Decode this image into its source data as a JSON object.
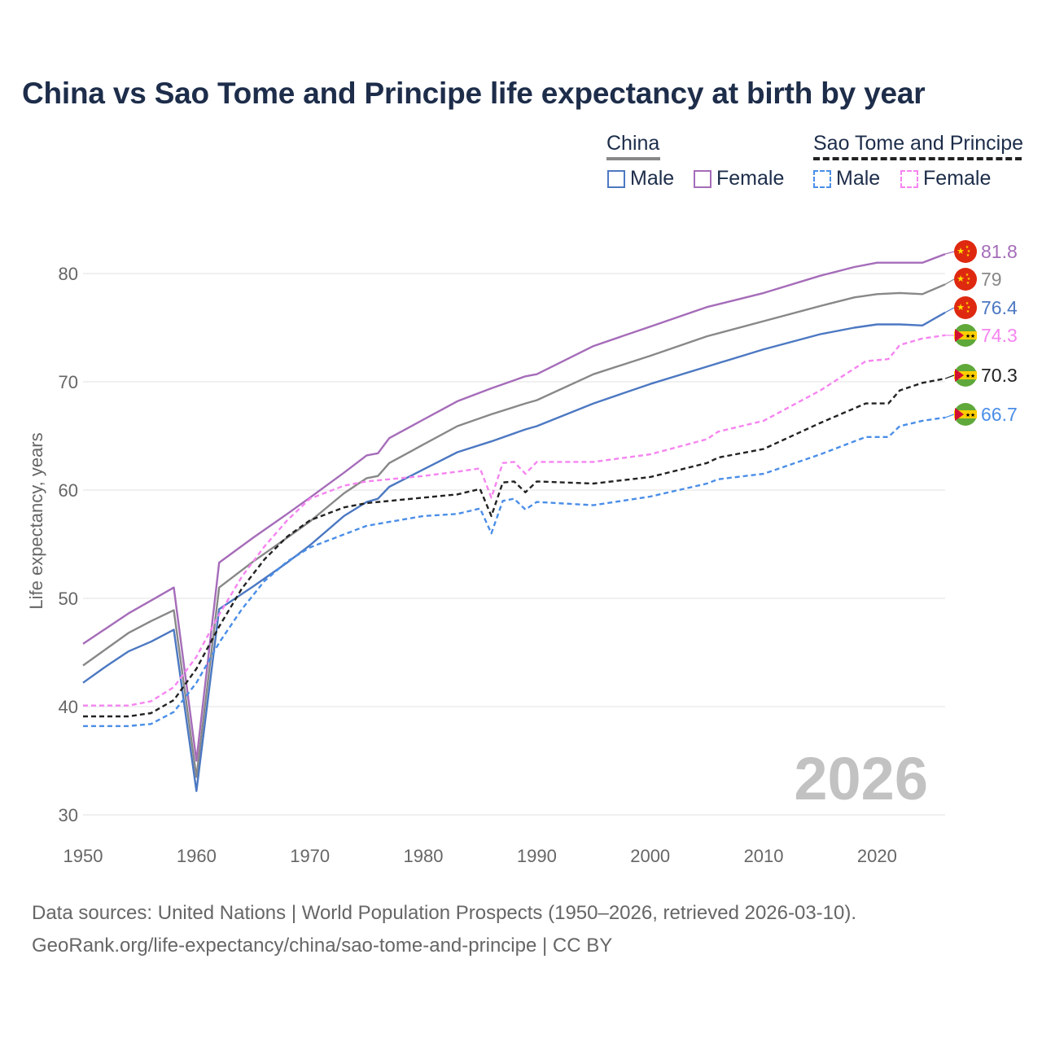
{
  "title": "China vs Sao Tome and Principe life expectancy at birth by year",
  "legend": {
    "groups": [
      {
        "name": "China",
        "color": "#888888",
        "dash": "solid",
        "items": [
          {
            "label": "Male",
            "color": "#4c78c2",
            "dash": "solid"
          },
          {
            "label": "Female",
            "color": "#a56cb9",
            "dash": "solid"
          }
        ]
      },
      {
        "name": "Sao Tome and Principe",
        "color": "#222222",
        "dash": "dashed",
        "items": [
          {
            "label": "Male",
            "color": "#4a8ee8",
            "dash": "dashed"
          },
          {
            "label": "Female",
            "color": "#f684f0",
            "dash": "dashed"
          }
        ]
      }
    ]
  },
  "watermark_year": "2026",
  "footer": {
    "line1": "Data sources: United Nations | World Population Prospects (1950–2026, retrieved 2026-03-10).",
    "line2": "GeoRank.org/life-expectancy/china/sao-tome-and-principe | CC BY"
  },
  "chart_data": {
    "type": "line",
    "title": "China vs Sao Tome and Principe life expectancy at birth by year",
    "xlabel": "",
    "ylabel": "Life expectancy, years",
    "xlim": [
      1950,
      2026
    ],
    "ylim": [
      30,
      84
    ],
    "xticks": [
      1950,
      1960,
      1970,
      1980,
      1990,
      2000,
      2010,
      2020
    ],
    "yticks": [
      30,
      40,
      50,
      60,
      70,
      80
    ],
    "grid": true,
    "series": [
      {
        "name": "China Female",
        "color": "#a56cb9",
        "dash": "solid",
        "end_label": "81.8",
        "flag": "china",
        "points": [
          [
            1950,
            45.8
          ],
          [
            1952,
            47.2
          ],
          [
            1954,
            48.6
          ],
          [
            1956,
            49.8
          ],
          [
            1958,
            51.0
          ],
          [
            1960,
            35.0
          ],
          [
            1962,
            53.3
          ],
          [
            1965,
            55.6
          ],
          [
            1968,
            57.8
          ],
          [
            1970,
            59.3
          ],
          [
            1973,
            61.6
          ],
          [
            1975,
            63.2
          ],
          [
            1976,
            63.4
          ],
          [
            1977,
            64.8
          ],
          [
            1980,
            66.5
          ],
          [
            1983,
            68.2
          ],
          [
            1986,
            69.4
          ],
          [
            1989,
            70.5
          ],
          [
            1990,
            70.7
          ],
          [
            1995,
            73.3
          ],
          [
            2000,
            75.1
          ],
          [
            2005,
            76.9
          ],
          [
            2010,
            78.2
          ],
          [
            2015,
            79.8
          ],
          [
            2018,
            80.6
          ],
          [
            2020,
            81.0
          ],
          [
            2022,
            81.0
          ],
          [
            2024,
            81.0
          ],
          [
            2026,
            81.8
          ]
        ]
      },
      {
        "name": "China Both",
        "color": "#888888",
        "dash": "solid",
        "end_label": "79",
        "flag": "china",
        "points": [
          [
            1950,
            43.8
          ],
          [
            1952,
            45.3
          ],
          [
            1954,
            46.8
          ],
          [
            1956,
            47.9
          ],
          [
            1958,
            48.9
          ],
          [
            1960,
            33.5
          ],
          [
            1962,
            51.0
          ],
          [
            1965,
            53.4
          ],
          [
            1968,
            55.6
          ],
          [
            1970,
            57.1
          ],
          [
            1973,
            59.7
          ],
          [
            1975,
            61.1
          ],
          [
            1976,
            61.3
          ],
          [
            1977,
            62.5
          ],
          [
            1980,
            64.2
          ],
          [
            1983,
            65.9
          ],
          [
            1986,
            67.0
          ],
          [
            1989,
            68.0
          ],
          [
            1990,
            68.3
          ],
          [
            1995,
            70.7
          ],
          [
            2000,
            72.4
          ],
          [
            2005,
            74.2
          ],
          [
            2010,
            75.6
          ],
          [
            2015,
            77.0
          ],
          [
            2018,
            77.8
          ],
          [
            2020,
            78.1
          ],
          [
            2022,
            78.2
          ],
          [
            2024,
            78.1
          ],
          [
            2026,
            79.0
          ]
        ]
      },
      {
        "name": "China Male",
        "color": "#4c78c2",
        "dash": "solid",
        "end_label": "76.4",
        "flag": "china",
        "points": [
          [
            1950,
            42.2
          ],
          [
            1952,
            43.7
          ],
          [
            1954,
            45.1
          ],
          [
            1956,
            46.0
          ],
          [
            1958,
            47.1
          ],
          [
            1960,
            32.2
          ],
          [
            1962,
            49.0
          ],
          [
            1965,
            51.1
          ],
          [
            1968,
            53.3
          ],
          [
            1970,
            54.9
          ],
          [
            1973,
            57.6
          ],
          [
            1975,
            58.9
          ],
          [
            1976,
            59.2
          ],
          [
            1977,
            60.3
          ],
          [
            1980,
            61.9
          ],
          [
            1983,
            63.5
          ],
          [
            1986,
            64.5
          ],
          [
            1989,
            65.6
          ],
          [
            1990,
            65.9
          ],
          [
            1995,
            68.0
          ],
          [
            2000,
            69.8
          ],
          [
            2005,
            71.4
          ],
          [
            2010,
            73.0
          ],
          [
            2015,
            74.4
          ],
          [
            2018,
            75.0
          ],
          [
            2020,
            75.3
          ],
          [
            2022,
            75.3
          ],
          [
            2024,
            75.2
          ],
          [
            2026,
            76.4
          ]
        ]
      },
      {
        "name": "Sao Tome and Principe Female",
        "color": "#f684f0",
        "dash": "dashed",
        "end_label": "74.3",
        "flag": "stp",
        "points": [
          [
            1950,
            40.1
          ],
          [
            1952,
            40.1
          ],
          [
            1954,
            40.1
          ],
          [
            1956,
            40.5
          ],
          [
            1958,
            41.8
          ],
          [
            1960,
            44.6
          ],
          [
            1962,
            48.5
          ],
          [
            1964,
            52.0
          ],
          [
            1966,
            54.8
          ],
          [
            1968,
            57.2
          ],
          [
            1970,
            59.2
          ],
          [
            1973,
            60.4
          ],
          [
            1975,
            60.8
          ],
          [
            1980,
            61.3
          ],
          [
            1983,
            61.7
          ],
          [
            1985,
            62.0
          ],
          [
            1986,
            59.3
          ],
          [
            1987,
            62.5
          ],
          [
            1988,
            62.6
          ],
          [
            1989,
            61.5
          ],
          [
            1990,
            62.6
          ],
          [
            1995,
            62.6
          ],
          [
            2000,
            63.3
          ],
          [
            2005,
            64.7
          ],
          [
            2006,
            65.4
          ],
          [
            2010,
            66.4
          ],
          [
            2015,
            69.2
          ],
          [
            2019,
            71.9
          ],
          [
            2021,
            72.1
          ],
          [
            2022,
            73.4
          ],
          [
            2024,
            74.0
          ],
          [
            2026,
            74.3
          ]
        ]
      },
      {
        "name": "Sao Tome and Principe Both",
        "color": "#222222",
        "dash": "dashed",
        "end_label": "70.3",
        "flag": "stp",
        "points": [
          [
            1950,
            39.1
          ],
          [
            1952,
            39.1
          ],
          [
            1954,
            39.1
          ],
          [
            1956,
            39.4
          ],
          [
            1958,
            40.6
          ],
          [
            1960,
            43.5
          ],
          [
            1962,
            47.4
          ],
          [
            1964,
            50.9
          ],
          [
            1966,
            53.6
          ],
          [
            1968,
            55.7
          ],
          [
            1970,
            57.2
          ],
          [
            1973,
            58.4
          ],
          [
            1975,
            58.8
          ],
          [
            1980,
            59.3
          ],
          [
            1983,
            59.6
          ],
          [
            1985,
            60.1
          ],
          [
            1986,
            57.6
          ],
          [
            1987,
            60.7
          ],
          [
            1988,
            60.8
          ],
          [
            1989,
            59.8
          ],
          [
            1990,
            60.8
          ],
          [
            1995,
            60.6
          ],
          [
            2000,
            61.2
          ],
          [
            2005,
            62.5
          ],
          [
            2006,
            63.0
          ],
          [
            2010,
            63.8
          ],
          [
            2015,
            66.2
          ],
          [
            2019,
            68.0
          ],
          [
            2021,
            68.0
          ],
          [
            2022,
            69.2
          ],
          [
            2024,
            69.9
          ],
          [
            2026,
            70.3
          ]
        ]
      },
      {
        "name": "Sao Tome and Principe Male",
        "color": "#4a8ee8",
        "dash": "dashed",
        "end_label": "66.7",
        "flag": "stp",
        "points": [
          [
            1950,
            38.2
          ],
          [
            1952,
            38.2
          ],
          [
            1954,
            38.2
          ],
          [
            1956,
            38.4
          ],
          [
            1958,
            39.5
          ],
          [
            1960,
            42.2
          ],
          [
            1962,
            45.9
          ],
          [
            1964,
            49.0
          ],
          [
            1966,
            51.6
          ],
          [
            1968,
            53.4
          ],
          [
            1970,
            54.7
          ],
          [
            1973,
            55.9
          ],
          [
            1975,
            56.7
          ],
          [
            1980,
            57.6
          ],
          [
            1983,
            57.8
          ],
          [
            1985,
            58.3
          ],
          [
            1986,
            56.0
          ],
          [
            1987,
            59.0
          ],
          [
            1988,
            59.2
          ],
          [
            1989,
            58.2
          ],
          [
            1990,
            58.9
          ],
          [
            1995,
            58.6
          ],
          [
            2000,
            59.4
          ],
          [
            2005,
            60.6
          ],
          [
            2006,
            61.0
          ],
          [
            2010,
            61.5
          ],
          [
            2015,
            63.3
          ],
          [
            2019,
            64.9
          ],
          [
            2021,
            64.9
          ],
          [
            2022,
            65.9
          ],
          [
            2024,
            66.4
          ],
          [
            2026,
            66.7
          ]
        ]
      }
    ]
  }
}
